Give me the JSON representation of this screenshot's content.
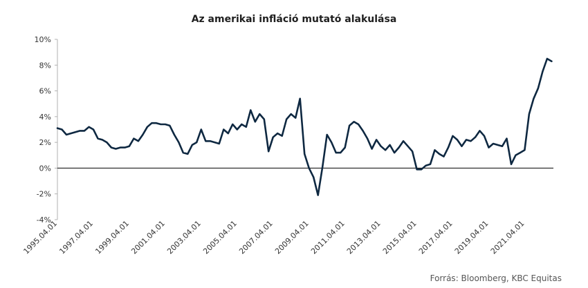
{
  "source": "Forrás: Bloomberg,  KBC Equitas",
  "colors": {
    "line": "#0e2841",
    "axis": "#000000",
    "grid": "#c8c8c8"
  },
  "chart_data": {
    "type": "line",
    "title": "Az amerikai infláció mutató alakulása",
    "xlabel": "",
    "ylabel": "",
    "ylim": [
      -4,
      10
    ],
    "yticks": [
      -4,
      -2,
      0,
      2,
      4,
      6,
      8,
      10
    ],
    "ytick_labels": [
      "-4%",
      "-2%",
      "0%",
      "2%",
      "4%",
      "6%",
      "8%",
      "10%"
    ],
    "xlim": [
      1995.0,
      2022.6
    ],
    "xticks": [
      1995.0,
      1997.0,
      1999.0,
      2001.0,
      2003.0,
      2005.0,
      2007.0,
      2009.0,
      2011.0,
      2013.0,
      2015.0,
      2017.0,
      2019.0,
      2021.0
    ],
    "xtick_labels": [
      "1995.04.01",
      "1997.04.01",
      "1999.04.01",
      "2001.04.01",
      "2003.04.01",
      "2005.04.01",
      "2007.04.01",
      "2009.04.01",
      "2011.04.01",
      "2013.04.01",
      "2015.04.01",
      "2017.04.01",
      "2019.04.01",
      "2021.04.01"
    ],
    "grid": false,
    "series": [
      {
        "x": [
          1995.0,
          1995.25,
          1995.5,
          1995.75,
          1996.0,
          1996.25,
          1996.5,
          1996.75,
          1997.0,
          1997.25,
          1997.5,
          1997.75,
          1998.0,
          1998.25,
          1998.5,
          1998.75,
          1999.0,
          1999.25,
          1999.5,
          1999.75,
          2000.0,
          2000.25,
          2000.5,
          2000.75,
          2001.0,
          2001.25,
          2001.5,
          2001.75,
          2002.0,
          2002.25,
          2002.5,
          2002.75,
          2003.0,
          2003.25,
          2003.5,
          2003.75,
          2004.0,
          2004.25,
          2004.5,
          2004.75,
          2005.0,
          2005.25,
          2005.5,
          2005.75,
          2006.0,
          2006.25,
          2006.5,
          2006.75,
          2007.0,
          2007.25,
          2007.5,
          2007.75,
          2008.0,
          2008.25,
          2008.5,
          2008.75,
          2009.0,
          2009.25,
          2009.5,
          2009.75,
          2010.0,
          2010.25,
          2010.5,
          2010.75,
          2011.0,
          2011.25,
          2011.5,
          2011.75,
          2012.0,
          2012.25,
          2012.5,
          2012.75,
          2013.0,
          2013.25,
          2013.5,
          2013.75,
          2014.0,
          2014.25,
          2014.5,
          2014.75,
          2015.0,
          2015.25,
          2015.5,
          2015.75,
          2016.0,
          2016.25,
          2016.5,
          2016.75,
          2017.0,
          2017.25,
          2017.5,
          2017.75,
          2018.0,
          2018.25,
          2018.5,
          2018.75,
          2019.0,
          2019.25,
          2019.5,
          2019.75,
          2020.0,
          2020.25,
          2020.5,
          2020.75,
          2021.0,
          2021.25,
          2021.5,
          2021.75,
          2022.0,
          2022.25,
          2022.5
        ],
        "values": [
          3.1,
          3.0,
          2.6,
          2.7,
          2.8,
          2.9,
          2.9,
          3.2,
          3.0,
          2.3,
          2.2,
          2.0,
          1.6,
          1.5,
          1.6,
          1.6,
          1.7,
          2.3,
          2.1,
          2.6,
          3.2,
          3.5,
          3.5,
          3.4,
          3.4,
          3.3,
          2.6,
          2.0,
          1.2,
          1.1,
          1.8,
          2.0,
          3.0,
          2.1,
          2.1,
          2.0,
          1.9,
          3.0,
          2.7,
          3.4,
          3.0,
          3.4,
          3.2,
          4.5,
          3.6,
          4.2,
          3.8,
          1.3,
          2.4,
          2.7,
          2.5,
          3.8,
          4.2,
          3.9,
          5.4,
          1.1,
          0.0,
          -0.7,
          -2.1,
          0.1,
          2.6,
          2.0,
          1.2,
          1.2,
          1.6,
          3.3,
          3.6,
          3.4,
          2.9,
          2.3,
          1.5,
          2.2,
          1.7,
          1.4,
          1.8,
          1.2,
          1.6,
          2.1,
          1.7,
          1.3,
          -0.1,
          -0.1,
          0.2,
          0.3,
          1.4,
          1.1,
          0.9,
          1.6,
          2.5,
          2.2,
          1.7,
          2.2,
          2.1,
          2.4,
          2.9,
          2.5,
          1.6,
          1.9,
          1.8,
          1.7,
          2.3,
          0.3,
          1.0,
          1.2,
          1.4,
          4.2,
          5.4,
          6.2,
          7.5,
          8.5,
          8.3
        ]
      }
    ]
  }
}
